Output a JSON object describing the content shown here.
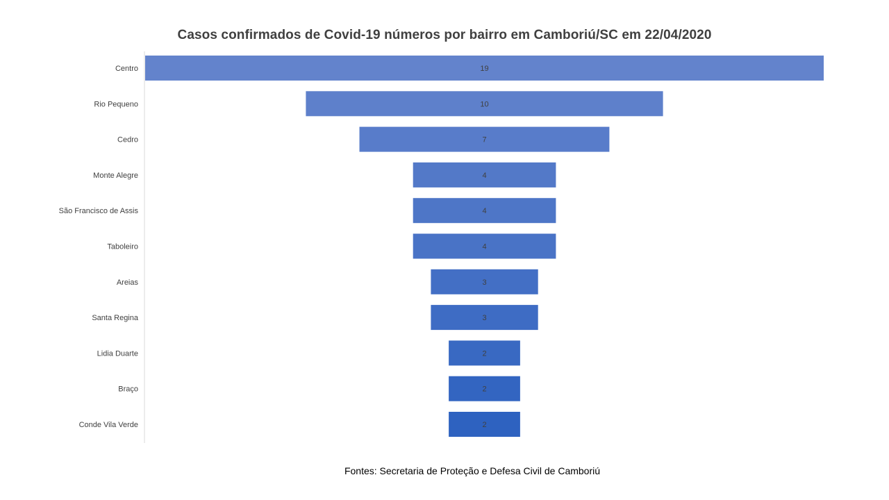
{
  "chart_data": {
    "type": "bar",
    "orientation": "horizontal-funnel",
    "title": "Casos confirmados  de Covid-19 números por bairro em Camboriú/SC  em 22/04/2020",
    "categories": [
      "Centro",
      "Rio Pequeno",
      "Cedro",
      "Monte Alegre",
      "São Francisco de Assis",
      "Taboleiro",
      "Areias",
      "Santa Regina",
      "Lidia Duarte",
      "Braço",
      "Conde Vila Verde"
    ],
    "values": [
      19,
      10,
      7,
      4,
      4,
      4,
      3,
      3,
      2,
      2,
      2
    ],
    "xlabel": "",
    "ylabel": "",
    "xlim": [
      0,
      19
    ],
    "grid": false,
    "legend": "none",
    "bar_color_top": "#6383cc",
    "bar_color_bottom": "#2e62c0"
  },
  "source_note": "Fontes: Secretaria de Proteção  e Defesa Civil de Camboriú"
}
